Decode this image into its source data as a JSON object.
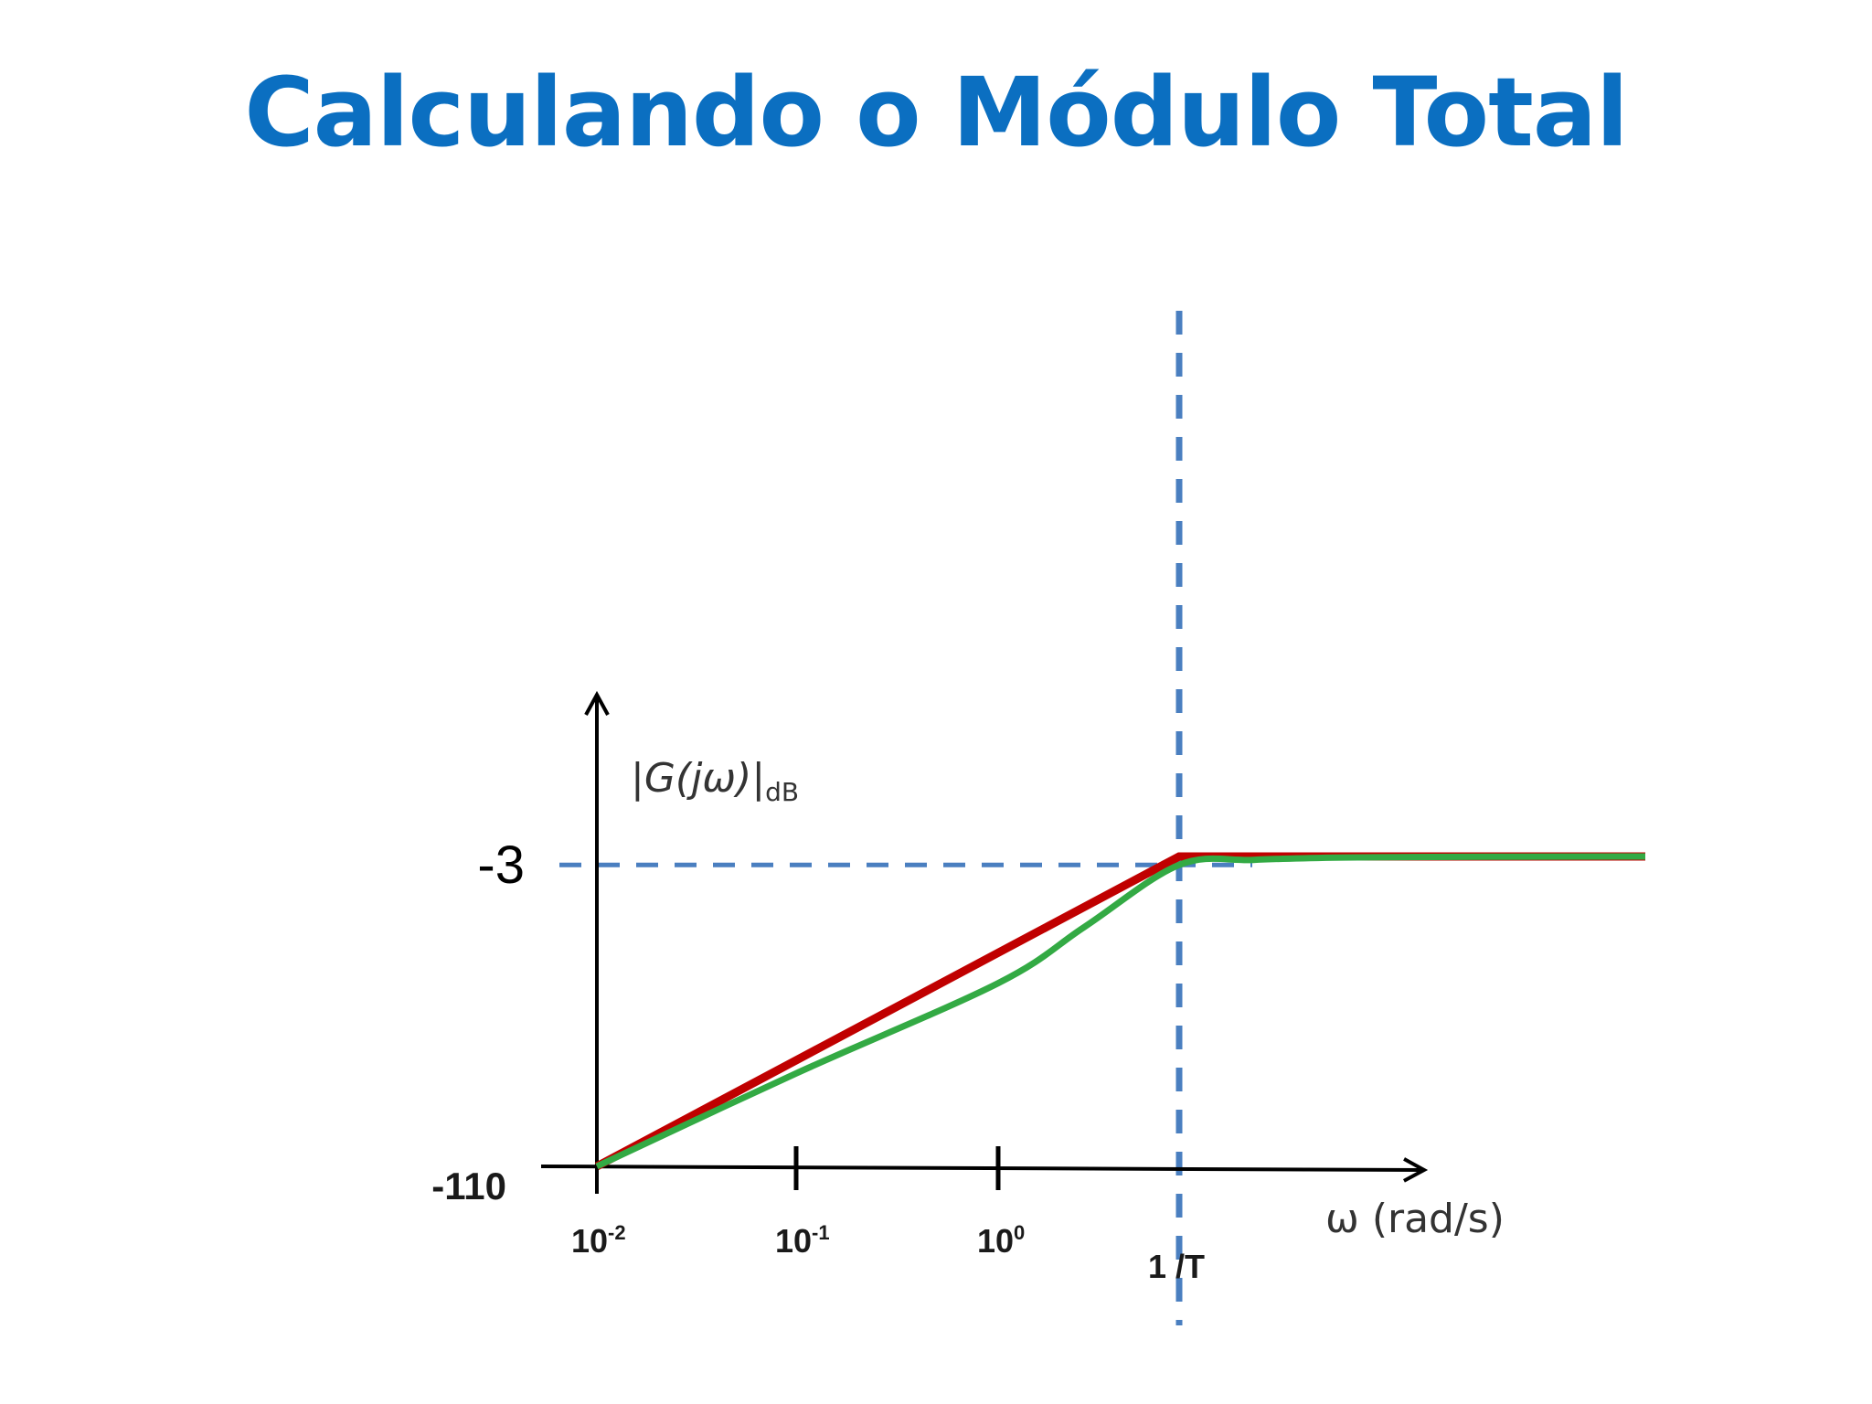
{
  "slide": {
    "title": "Calculando o Módulo Total"
  },
  "chart_data": {
    "type": "line",
    "scale_x": "log",
    "xlabel": "ω (rad/s)",
    "ylabel": "|G(jω)|dB",
    "ylabel_main": "|G(jω)|",
    "ylabel_sub": "dB",
    "x_ticks": [
      {
        "value": 0.01,
        "base": "10",
        "exp": "-2"
      },
      {
        "value": 0.1,
        "base": "10",
        "exp": "-1"
      },
      {
        "value": 1,
        "base": "10",
        "exp": "0"
      }
    ],
    "break_label": "1 /T",
    "break_x": 10,
    "y_labels": [
      {
        "value": -110,
        "label": "-110"
      },
      {
        "value": -3,
        "label": "-3"
      }
    ],
    "ref_level": -3,
    "plateau_level": 0,
    "y_min": -110,
    "x_range": [
      0.01,
      10000
    ],
    "series": [
      {
        "role": "asymptotic",
        "color": "#c00000",
        "x": [
          0.01,
          10,
          10000
        ],
        "y": [
          -110,
          0,
          0
        ]
      },
      {
        "role": "exact",
        "color": "#33aa44",
        "x": [
          0.01,
          0.1,
          1,
          3,
          10,
          30,
          100,
          300,
          1000,
          10000
        ],
        "y": [
          -110,
          -77,
          -45,
          -25,
          -3,
          -1.2,
          -0.4,
          -0.2,
          -0.1,
          0
        ]
      }
    ],
    "guide_color": "#4a7fc0"
  }
}
